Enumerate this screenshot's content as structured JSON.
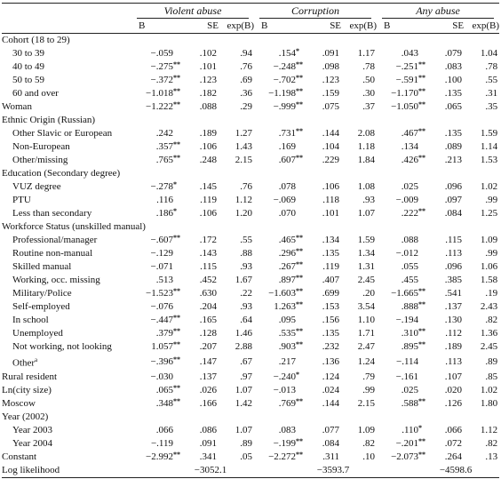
{
  "table": {
    "groups": [
      "Violent abuse",
      "Corruption",
      "Any abuse"
    ],
    "stats": [
      "B",
      "SE",
      "exp(B)"
    ],
    "rows": [
      {
        "label": "Cohort (18 to 29)",
        "rows": [
          {
            "label": "30 to 39",
            "cells": [
              "−.059",
              ".102",
              ".94",
              ".154*",
              ".091",
              "1.17",
              ".043",
              ".079",
              "1.04"
            ]
          },
          {
            "label": "40 to 49",
            "cells": [
              "−.275**",
              ".101",
              ".76",
              "−.248**",
              ".098",
              ".78",
              "−.251**",
              ".083",
              ".78"
            ]
          },
          {
            "label": "50 to 59",
            "cells": [
              "−.372**",
              ".123",
              ".69",
              "−.702**",
              ".123",
              ".50",
              "−.591**",
              ".100",
              ".55"
            ]
          },
          {
            "label": "60 and over",
            "cells": [
              "−1.018**",
              ".182",
              ".36",
              "−1.198**",
              ".159",
              ".30",
              "−1.170**",
              ".135",
              ".31"
            ]
          }
        ]
      },
      {
        "label": "Woman",
        "cells": [
          "−1.222**",
          ".088",
          ".29",
          "−.999**",
          ".075",
          ".37",
          "−1.050**",
          ".065",
          ".35"
        ]
      },
      {
        "label": "Ethnic Origin (Russian)",
        "rows": [
          {
            "label": "Other Slavic or European",
            "cells": [
              ".242",
              ".189",
              "1.27",
              ".731**",
              ".144",
              "2.08",
              ".467**",
              ".135",
              "1.59"
            ]
          },
          {
            "label": "Non-European",
            "cells": [
              ".357**",
              ".106",
              "1.43",
              ".169",
              ".104",
              "1.18",
              ".134",
              ".089",
              "1.14"
            ]
          },
          {
            "label": "Other/missing",
            "cells": [
              ".765**",
              ".248",
              "2.15",
              ".607**",
              ".229",
              "1.84",
              ".426**",
              ".213",
              "1.53"
            ]
          }
        ]
      },
      {
        "label": "Education (Secondary degree)",
        "rows": [
          {
            "label": "VUZ degree",
            "cells": [
              "−.278*",
              ".145",
              ".76",
              ".078",
              ".106",
              "1.08",
              ".025",
              ".096",
              "1.02"
            ]
          },
          {
            "label": "PTU",
            "cells": [
              ".116",
              ".119",
              "1.12",
              "−.069",
              ".118",
              ".93",
              "−.009",
              ".097",
              ".99"
            ]
          },
          {
            "label": "Less than secondary",
            "cells": [
              ".186*",
              ".106",
              "1.20",
              ".070",
              ".101",
              "1.07",
              ".222**",
              ".084",
              "1.25"
            ]
          }
        ]
      },
      {
        "label": "Workforce Status (unskilled manual)",
        "rows": [
          {
            "label": "Professional/manager",
            "cells": [
              "−.607**",
              ".172",
              ".55",
              ".465**",
              ".134",
              "1.59",
              ".088",
              ".115",
              "1.09"
            ]
          },
          {
            "label": "Routine non-manual",
            "cells": [
              "−.129",
              ".143",
              ".88",
              ".296**",
              ".135",
              "1.34",
              "−.012",
              ".113",
              ".99"
            ]
          },
          {
            "label": "Skilled manual",
            "cells": [
              "−.071",
              ".115",
              ".93",
              ".267**",
              ".119",
              "1.31",
              ".055",
              ".096",
              "1.06"
            ]
          },
          {
            "label": "Working, occ. missing",
            "cells": [
              ".513",
              ".452",
              "1.67",
              ".897**",
              ".407",
              "2.45",
              ".455",
              ".385",
              "1.58"
            ]
          },
          {
            "label": "Military/Police",
            "cells": [
              "−1.523**",
              ".630",
              ".22",
              "−1.603**",
              ".699",
              ".20",
              "−1.665**",
              ".541",
              ".19"
            ]
          },
          {
            "label": "Self-employed",
            "cells": [
              "−.076",
              ".204",
              ".93",
              "1.263**",
              ".153",
              "3.54",
              ".888**",
              ".137",
              "2.43"
            ]
          },
          {
            "label": "In school",
            "cells": [
              "−.447**",
              ".165",
              ".64",
              ".095",
              ".156",
              "1.10",
              "−.194",
              ".130",
              ".82"
            ]
          },
          {
            "label": "Unemployed",
            "cells": [
              ".379**",
              ".128",
              "1.46",
              ".535**",
              ".135",
              "1.71",
              ".310**",
              ".112",
              "1.36"
            ]
          },
          {
            "label": "Not working, not looking",
            "cells": [
              "1.057**",
              ".207",
              "2.88",
              ".903**",
              ".232",
              "2.47",
              ".895**",
              ".189",
              "2.45"
            ]
          },
          {
            "label": "Other",
            "footnote": "a",
            "cells": [
              "−.396**",
              ".147",
              ".67",
              ".217",
              ".136",
              "1.24",
              "−.114",
              ".113",
              ".89"
            ]
          }
        ]
      },
      {
        "label": "Rural resident",
        "cells": [
          "−.030",
          ".137",
          ".97",
          "−.240*",
          ".124",
          ".79",
          "−.161",
          ".107",
          ".85"
        ]
      },
      {
        "label": "Ln(city size)",
        "cells": [
          ".065**",
          ".026",
          "1.07",
          "−.013",
          ".024",
          ".99",
          ".025",
          ".020",
          "1.02"
        ]
      },
      {
        "label": "Moscow",
        "cells": [
          ".348**",
          ".166",
          "1.42",
          ".769**",
          ".144",
          "2.15",
          ".588**",
          ".126",
          "1.80"
        ]
      },
      {
        "label": "Year (2002)",
        "rows": [
          {
            "label": "Year 2003",
            "cells": [
              ".066",
              ".086",
              "1.07",
              ".083",
              ".077",
              "1.09",
              ".110*",
              ".066",
              "1.12"
            ]
          },
          {
            "label": "Year 2004",
            "cells": [
              "−.119",
              ".091",
              ".89",
              "−.199**",
              ".084",
              ".82",
              "−.201**",
              ".072",
              ".82"
            ]
          }
        ]
      },
      {
        "label": "Constant",
        "cells": [
          "−2.992**",
          ".341",
          ".05",
          "−2.272**",
          ".311",
          ".10",
          "−2.073**",
          ".264",
          ".13"
        ]
      },
      {
        "label": "Log likelihood",
        "totals": [
          "−3052.1",
          "−3593.7",
          "−4598.6"
        ]
      }
    ]
  }
}
